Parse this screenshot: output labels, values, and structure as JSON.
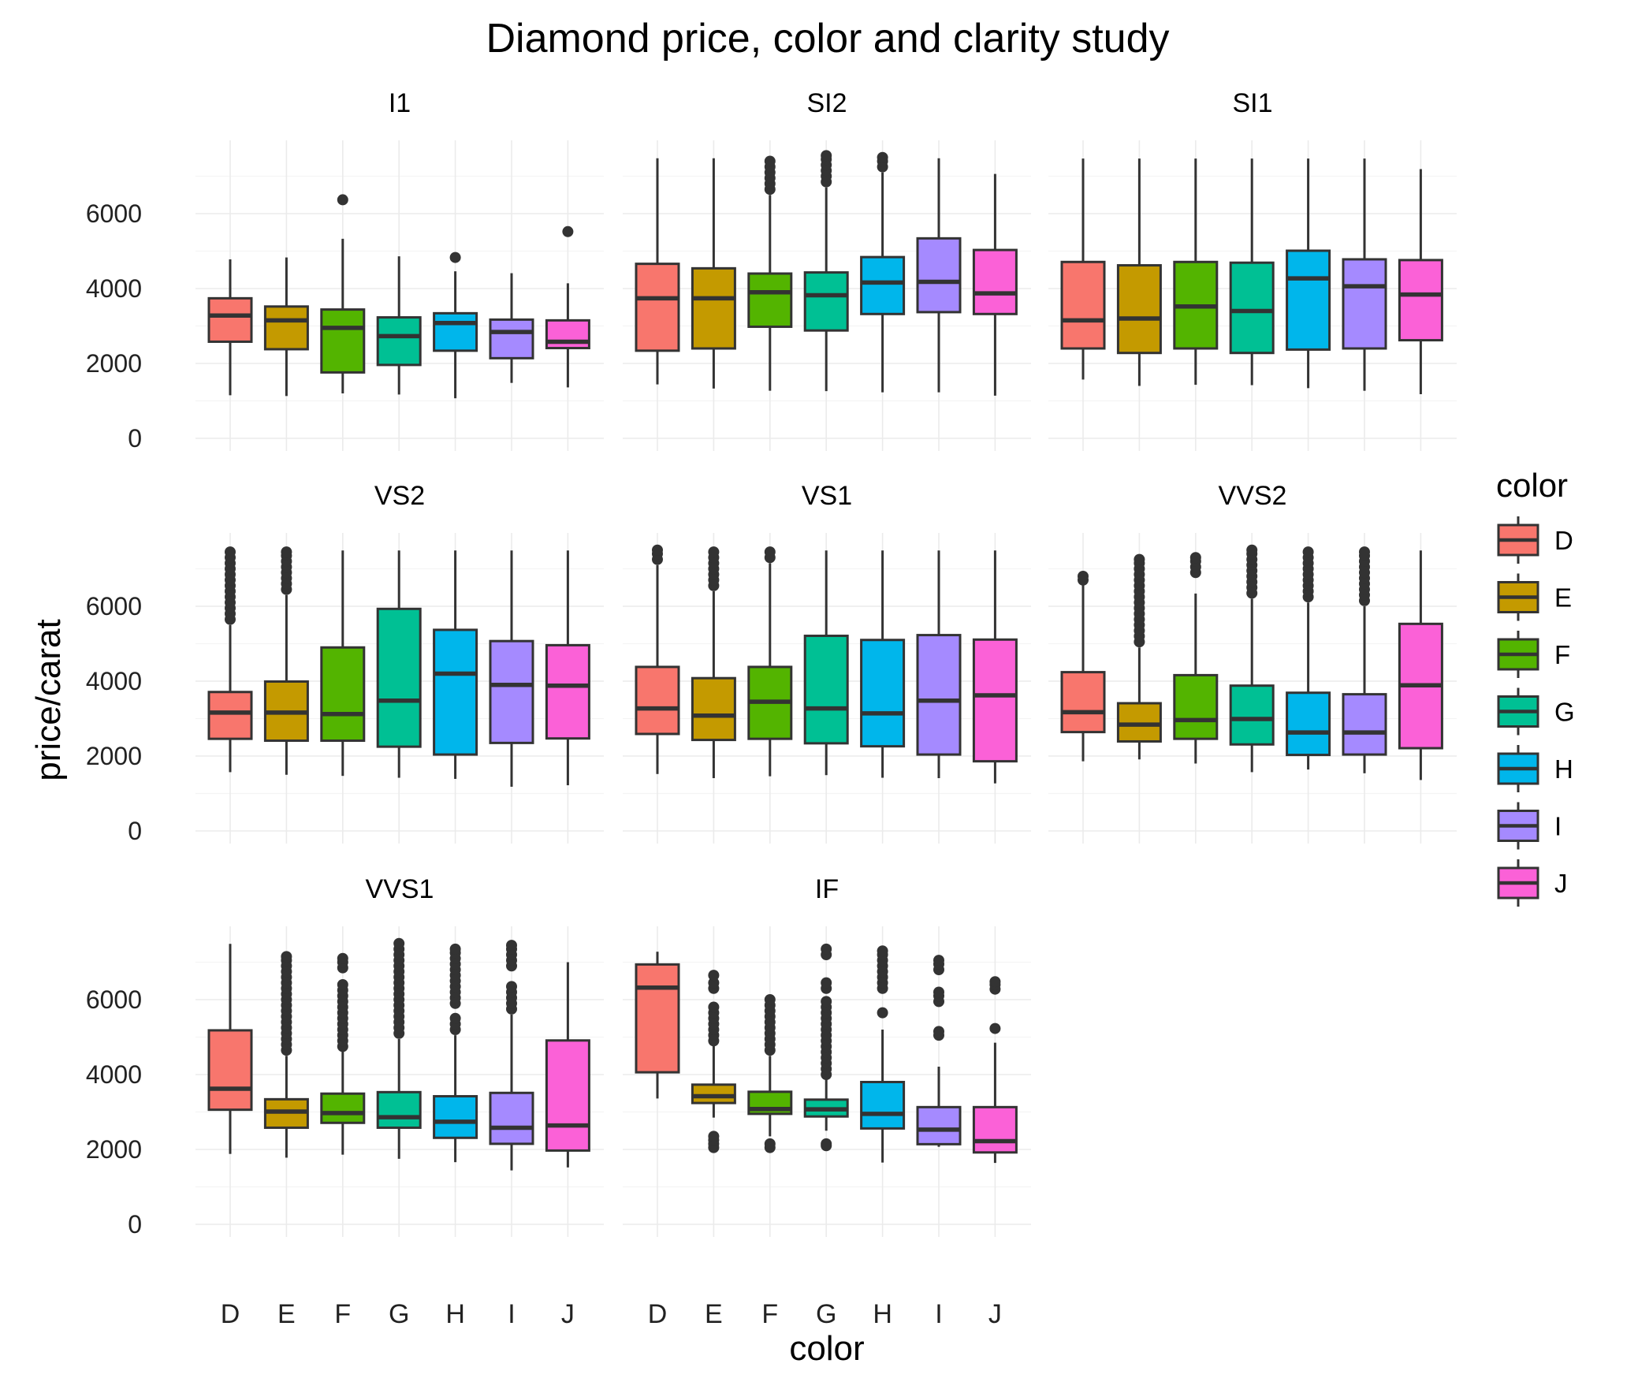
{
  "chart_data": {
    "type": "boxplot",
    "title": "Diamond price, color and clarity study",
    "xlabel": "color",
    "ylabel": "price/carat",
    "ylim": [
      0,
      7600
    ],
    "yticks": [
      0,
      2000,
      4000,
      6000
    ],
    "categories": [
      "D",
      "E",
      "F",
      "G",
      "H",
      "I",
      "J"
    ],
    "grid": true,
    "legend": {
      "title": "color",
      "position": "right",
      "entries": [
        {
          "label": "D",
          "color": "#F8766D"
        },
        {
          "label": "E",
          "color": "#C49A00"
        },
        {
          "label": "F",
          "color": "#53B400"
        },
        {
          "label": "G",
          "color": "#00C094"
        },
        {
          "label": "H",
          "color": "#00B6EB"
        },
        {
          "label": "I",
          "color": "#A58AFF"
        },
        {
          "label": "J",
          "color": "#FB61D7"
        }
      ]
    },
    "facets": [
      {
        "name": "I1",
        "boxes": [
          {
            "color": "D",
            "lower": 1150,
            "q1": 2580,
            "median": 3280,
            "q3": 3740,
            "upper": 4780,
            "outliers": []
          },
          {
            "color": "E",
            "lower": 1130,
            "q1": 2380,
            "median": 3150,
            "q3": 3520,
            "upper": 4830,
            "outliers": []
          },
          {
            "color": "F",
            "lower": 1200,
            "q1": 1760,
            "median": 2950,
            "q3": 3440,
            "upper": 5330,
            "outliers": [
              6370
            ]
          },
          {
            "color": "G",
            "lower": 1170,
            "q1": 1960,
            "median": 2730,
            "q3": 3230,
            "upper": 4860,
            "outliers": []
          },
          {
            "color": "H",
            "lower": 1070,
            "q1": 2340,
            "median": 3080,
            "q3": 3340,
            "upper": 4460,
            "outliers": [
              4830
            ]
          },
          {
            "color": "I",
            "lower": 1480,
            "q1": 2140,
            "median": 2840,
            "q3": 3170,
            "upper": 4410,
            "outliers": []
          },
          {
            "color": "J",
            "lower": 1360,
            "q1": 2410,
            "median": 2580,
            "q3": 3150,
            "upper": 4140,
            "outliers": [
              5520
            ]
          }
        ]
      },
      {
        "name": "SI2",
        "boxes": [
          {
            "color": "D",
            "lower": 1440,
            "q1": 2340,
            "median": 3740,
            "q3": 4660,
            "upper": 7480,
            "outliers": []
          },
          {
            "color": "E",
            "lower": 1330,
            "q1": 2400,
            "median": 3740,
            "q3": 4540,
            "upper": 7480,
            "outliers": []
          },
          {
            "color": "F",
            "lower": 1270,
            "q1": 2980,
            "median": 3900,
            "q3": 4400,
            "upper": 6500,
            "outliers": [
              6650,
              6800,
              6950,
              7100,
              7250,
              7400
            ]
          },
          {
            "color": "G",
            "lower": 1260,
            "q1": 2880,
            "median": 3820,
            "q3": 4430,
            "upper": 6700,
            "outliers": [
              6850,
              7000,
              7150,
              7300,
              7450,
              7550
            ]
          },
          {
            "color": "H",
            "lower": 1230,
            "q1": 3320,
            "median": 4160,
            "q3": 4840,
            "upper": 7100,
            "outliers": [
              7250,
              7400,
              7500
            ]
          },
          {
            "color": "I",
            "lower": 1230,
            "q1": 3370,
            "median": 4180,
            "q3": 5340,
            "upper": 7480,
            "outliers": []
          },
          {
            "color": "J",
            "lower": 1140,
            "q1": 3320,
            "median": 3870,
            "q3": 5030,
            "upper": 7060,
            "outliers": []
          }
        ]
      },
      {
        "name": "SI1",
        "boxes": [
          {
            "color": "D",
            "lower": 1570,
            "q1": 2400,
            "median": 3150,
            "q3": 4710,
            "upper": 7470,
            "outliers": []
          },
          {
            "color": "E",
            "lower": 1400,
            "q1": 2280,
            "median": 3200,
            "q3": 4620,
            "upper": 7470,
            "outliers": []
          },
          {
            "color": "F",
            "lower": 1430,
            "q1": 2400,
            "median": 3520,
            "q3": 4710,
            "upper": 7470,
            "outliers": []
          },
          {
            "color": "G",
            "lower": 1420,
            "q1": 2280,
            "median": 3400,
            "q3": 4690,
            "upper": 7470,
            "outliers": []
          },
          {
            "color": "H",
            "lower": 1340,
            "q1": 2370,
            "median": 4270,
            "q3": 5010,
            "upper": 7470,
            "outliers": []
          },
          {
            "color": "I",
            "lower": 1270,
            "q1": 2400,
            "median": 4060,
            "q3": 4780,
            "upper": 7470,
            "outliers": []
          },
          {
            "color": "J",
            "lower": 1180,
            "q1": 2620,
            "median": 3840,
            "q3": 4760,
            "upper": 7190,
            "outliers": []
          }
        ]
      },
      {
        "name": "VS2",
        "boxes": [
          {
            "color": "D",
            "lower": 1570,
            "q1": 2460,
            "median": 3160,
            "q3": 3710,
            "upper": 5500,
            "outliers": [
              5650,
              5800,
              5950,
              6100,
              6250,
              6400,
              6550,
              6700,
              6850,
              7000,
              7150,
              7300,
              7450
            ]
          },
          {
            "color": "E",
            "lower": 1500,
            "q1": 2410,
            "median": 3160,
            "q3": 3990,
            "upper": 6300,
            "outliers": [
              6450,
              6600,
              6750,
              6900,
              7050,
              7200,
              7350,
              7450
            ]
          },
          {
            "color": "F",
            "lower": 1470,
            "q1": 2410,
            "median": 3120,
            "q3": 4900,
            "upper": 7490,
            "outliers": []
          },
          {
            "color": "G",
            "lower": 1420,
            "q1": 2250,
            "median": 3480,
            "q3": 5930,
            "upper": 7490,
            "outliers": []
          },
          {
            "color": "H",
            "lower": 1390,
            "q1": 2040,
            "median": 4200,
            "q3": 5370,
            "upper": 7490,
            "outliers": []
          },
          {
            "color": "I",
            "lower": 1180,
            "q1": 2350,
            "median": 3900,
            "q3": 5070,
            "upper": 7490,
            "outliers": []
          },
          {
            "color": "J",
            "lower": 1220,
            "q1": 2470,
            "median": 3880,
            "q3": 4960,
            "upper": 7490,
            "outliers": []
          }
        ]
      },
      {
        "name": "VS1",
        "boxes": [
          {
            "color": "D",
            "lower": 1520,
            "q1": 2590,
            "median": 3270,
            "q3": 4380,
            "upper": 7100,
            "outliers": [
              7250,
              7400,
              7500
            ]
          },
          {
            "color": "E",
            "lower": 1410,
            "q1": 2430,
            "median": 3080,
            "q3": 4080,
            "upper": 6400,
            "outliers": [
              6550,
              6700,
              6850,
              7000,
              7150,
              7300,
              7450
            ]
          },
          {
            "color": "F",
            "lower": 1460,
            "q1": 2460,
            "median": 3450,
            "q3": 4380,
            "upper": 7150,
            "outliers": [
              7300,
              7450
            ]
          },
          {
            "color": "G",
            "lower": 1490,
            "q1": 2340,
            "median": 3270,
            "q3": 5210,
            "upper": 7490,
            "outliers": []
          },
          {
            "color": "H",
            "lower": 1420,
            "q1": 2260,
            "median": 3140,
            "q3": 5100,
            "upper": 7490,
            "outliers": []
          },
          {
            "color": "I",
            "lower": 1410,
            "q1": 2040,
            "median": 3480,
            "q3": 5230,
            "upper": 7490,
            "outliers": []
          },
          {
            "color": "J",
            "lower": 1270,
            "q1": 1860,
            "median": 3620,
            "q3": 5110,
            "upper": 7490,
            "outliers": []
          }
        ]
      },
      {
        "name": "VVS2",
        "boxes": [
          {
            "color": "D",
            "lower": 1860,
            "q1": 2640,
            "median": 3170,
            "q3": 4240,
            "upper": 6600,
            "outliers": [
              6700,
              6800
            ]
          },
          {
            "color": "E",
            "lower": 1910,
            "q1": 2390,
            "median": 2840,
            "q3": 3410,
            "upper": 4900,
            "outliers": [
              5050,
              5200,
              5350,
              5500,
              5650,
              5800,
              5950,
              6100,
              6250,
              6400,
              6550,
              6700,
              6850,
              7000,
              7150,
              7250
            ]
          },
          {
            "color": "F",
            "lower": 1800,
            "q1": 2460,
            "median": 2960,
            "q3": 4160,
            "upper": 6340,
            "outliers": [
              6900,
              7050,
              7200,
              7300
            ]
          },
          {
            "color": "G",
            "lower": 1570,
            "q1": 2310,
            "median": 2990,
            "q3": 3880,
            "upper": 6200,
            "outliers": [
              6350,
              6500,
              6650,
              6800,
              6950,
              7100,
              7250,
              7400,
              7500
            ]
          },
          {
            "color": "H",
            "lower": 1640,
            "q1": 2030,
            "median": 2630,
            "q3": 3690,
            "upper": 6100,
            "outliers": [
              6250,
              6400,
              6550,
              6700,
              6850,
              7000,
              7150,
              7300,
              7450
            ]
          },
          {
            "color": "I",
            "lower": 1540,
            "q1": 2040,
            "median": 2630,
            "q3": 3650,
            "upper": 6000,
            "outliers": [
              6150,
              6300,
              6450,
              6600,
              6750,
              6900,
              7050,
              7200,
              7350,
              7450
            ]
          },
          {
            "color": "J",
            "lower": 1360,
            "q1": 2210,
            "median": 3890,
            "q3": 5530,
            "upper": 7490,
            "outliers": []
          }
        ]
      },
      {
        "name": "VVS1",
        "boxes": [
          {
            "color": "D",
            "lower": 1880,
            "q1": 3060,
            "median": 3620,
            "q3": 5180,
            "upper": 7490,
            "outliers": []
          },
          {
            "color": "E",
            "lower": 1780,
            "q1": 2580,
            "median": 3010,
            "q3": 3340,
            "upper": 4500,
            "outliers": [
              4650,
              4800,
              4950,
              5100,
              5250,
              5400,
              5550,
              5700,
              5850,
              6000,
              6150,
              6300,
              6450,
              6600,
              6750,
              6900,
              7050,
              7150
            ]
          },
          {
            "color": "F",
            "lower": 1860,
            "q1": 2710,
            "median": 2970,
            "q3": 3490,
            "upper": 4620,
            "outliers": [
              4750,
              4900,
              5050,
              5200,
              5350,
              5500,
              5650,
              5800,
              5950,
              6100,
              6250,
              6400,
              6850,
              7000,
              7100
            ]
          },
          {
            "color": "G",
            "lower": 1750,
            "q1": 2580,
            "median": 2860,
            "q3": 3530,
            "upper": 4950,
            "outliers": [
              5100,
              5250,
              5400,
              5550,
              5700,
              5850,
              6000,
              6150,
              6300,
              6450,
              6600,
              6750,
              6900,
              7050,
              7200,
              7350,
              7500
            ]
          },
          {
            "color": "H",
            "lower": 1660,
            "q1": 2310,
            "median": 2740,
            "q3": 3420,
            "upper": 5050,
            "outliers": [
              5200,
              5350,
              5500,
              5900,
              6050,
              6200,
              6350,
              6500,
              6650,
              6800,
              6950,
              7100,
              7250,
              7350
            ]
          },
          {
            "color": "I",
            "lower": 1440,
            "q1": 2150,
            "median": 2580,
            "q3": 3510,
            "upper": 5600,
            "outliers": [
              5750,
              5900,
              6050,
              6200,
              6350,
              6900,
              7050,
              7200,
              7350,
              7450
            ]
          },
          {
            "color": "J",
            "lower": 1520,
            "q1": 1970,
            "median": 2640,
            "q3": 4910,
            "upper": 7000,
            "outliers": []
          }
        ]
      },
      {
        "name": "IF",
        "boxes": [
          {
            "color": "D",
            "lower": 3360,
            "q1": 4060,
            "median": 6320,
            "q3": 6940,
            "upper": 7280,
            "outliers": []
          },
          {
            "color": "E",
            "lower": 2850,
            "q1": 3240,
            "median": 3420,
            "q3": 3730,
            "upper": 4770,
            "outliers": [
              2050,
              2150,
              2250,
              2350,
              4900,
              5050,
              5200,
              5350,
              5500,
              5650,
              5800,
              6300,
              6450,
              6650
            ]
          },
          {
            "color": "F",
            "lower": 2350,
            "q1": 2950,
            "median": 3080,
            "q3": 3540,
            "upper": 4500,
            "outliers": [
              2050,
              2150,
              4650,
              4800,
              4950,
              5100,
              5250,
              5400,
              5550,
              5700,
              5850,
              6000
            ]
          },
          {
            "color": "G",
            "lower": 2500,
            "q1": 2880,
            "median": 3070,
            "q3": 3330,
            "upper": 3880,
            "outliers": [
              2100,
              2150,
              4000,
              4150,
              4300,
              4450,
              4600,
              4750,
              4900,
              5050,
              5200,
              5350,
              5500,
              5650,
              5800,
              5950,
              6300,
              6450,
              7200,
              7350
            ]
          },
          {
            "color": "H",
            "lower": 1650,
            "q1": 2560,
            "median": 2950,
            "q3": 3800,
            "upper": 5200,
            "outliers": [
              5650,
              6300,
              6450,
              6600,
              6750,
              6900,
              7050,
              7200,
              7300
            ]
          },
          {
            "color": "I",
            "lower": 2070,
            "q1": 2140,
            "median": 2530,
            "q3": 3130,
            "upper": 4210,
            "outliers": [
              5050,
              5150,
              5950,
              6100,
              6200,
              6800,
              6950,
              7050
            ]
          },
          {
            "color": "J",
            "lower": 1640,
            "q1": 1920,
            "median": 2220,
            "q3": 3130,
            "upper": 4850,
            "outliers": [
              5230,
              6280,
              6400,
              6480
            ]
          }
        ]
      }
    ]
  }
}
